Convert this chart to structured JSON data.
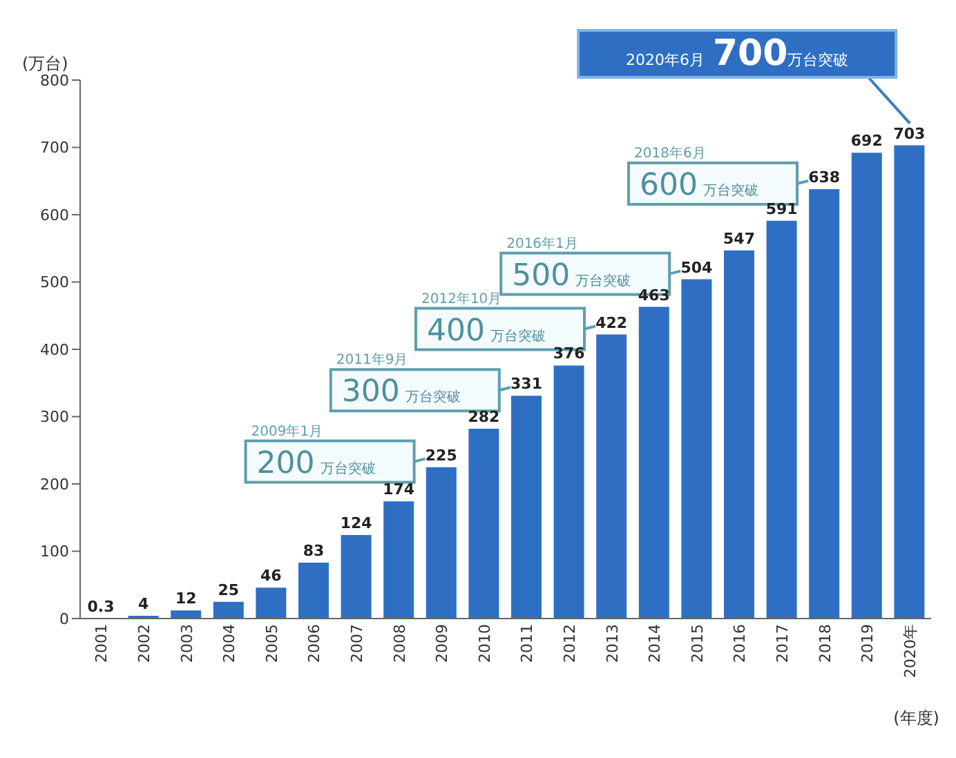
{
  "chart_data": {
    "type": "bar",
    "ylabel": "(万台)",
    "xlabel": "(年度)",
    "categories": [
      "2001",
      "2002",
      "2003",
      "2004",
      "2005",
      "2006",
      "2007",
      "2008",
      "2009",
      "2010",
      "2011",
      "2012",
      "2013",
      "2014",
      "2015",
      "2016",
      "2017",
      "2018",
      "2019",
      "2020年"
    ],
    "values": [
      0.3,
      4,
      12,
      25,
      46,
      83,
      124,
      174,
      225,
      282,
      331,
      376,
      422,
      463,
      504,
      547,
      591,
      638,
      692,
      703
    ],
    "color": "#2e6fc4",
    "ylim": [
      0,
      800
    ],
    "yticks": [
      0,
      100,
      200,
      300,
      400,
      500,
      600,
      700,
      800
    ],
    "grid": false,
    "data_labels": true,
    "annotations": [
      {
        "text": "2009年1月 200万台突破",
        "x": "2009",
        "y": 225
      },
      {
        "text": "2011年9月 300万台突破",
        "x": "2011",
        "y": 331
      },
      {
        "text": "2012年10月 400万台突破",
        "x": "2013",
        "y": 422
      },
      {
        "text": "2016年1月 500万台突破",
        "x": "2015",
        "y": 504
      },
      {
        "text": "2018年6月 600万台突破",
        "x": "2018",
        "y": 638
      },
      {
        "text": "2020年6月 700万台突破",
        "x": "2020年",
        "y": 703
      }
    ]
  }
}
